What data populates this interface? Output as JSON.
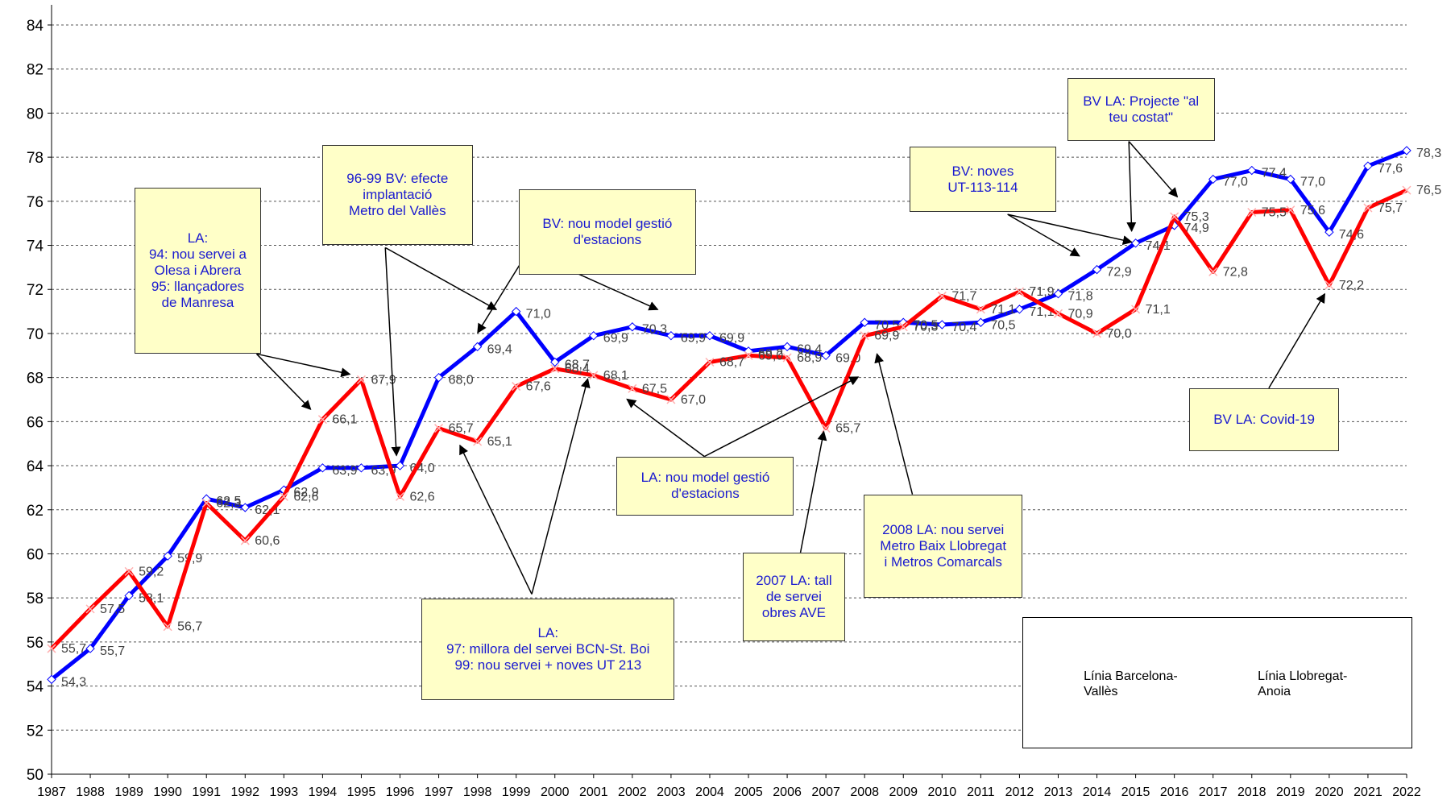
{
  "chart_data": {
    "type": "line",
    "categories": [
      "1987",
      "1988",
      "1989",
      "1990",
      "1991",
      "1992",
      "1993",
      "1994",
      "1995",
      "1996",
      "1997",
      "1998",
      "1999",
      "2000",
      "2001",
      "2002",
      "2003",
      "2004",
      "2005",
      "2006",
      "2007",
      "2008",
      "2009",
      "2010",
      "2011",
      "2012",
      "2013",
      "2014",
      "2015",
      "2016",
      "2017",
      "2018",
      "2019",
      "2020",
      "2021",
      "2022"
    ],
    "series": [
      {
        "name": "Línia Barcelona-Vallès",
        "color": "#0000ff",
        "values": [
          54.3,
          55.7,
          58.1,
          59.9,
          62.5,
          62.1,
          62.9,
          63.9,
          63.9,
          64.0,
          68.0,
          69.4,
          71.0,
          68.7,
          69.9,
          70.3,
          69.9,
          69.9,
          69.2,
          69.4,
          69.0,
          70.5,
          70.5,
          70.4,
          70.5,
          71.1,
          71.8,
          72.9,
          74.1,
          74.9,
          77.0,
          77.4,
          77.0,
          74.6,
          77.6,
          78.3
        ],
        "value_labels": [
          "54,3",
          "55,7",
          "58,1",
          "59,9",
          "62,5",
          "62,1",
          "62,9",
          "63,9",
          "63,9",
          "64,0",
          "68,0",
          "69,4",
          "71,0",
          "68,7",
          "69,9",
          "70,3",
          "69,9",
          "69,9",
          "69,2",
          "69,4",
          "69,0",
          "70,5",
          "70,5",
          "70,4",
          "70,5",
          "71,1",
          "71,8",
          "72,9",
          "74,1",
          "74,9",
          "77,0",
          "77,4",
          "77,0",
          "74,6",
          "77,6",
          "78,3"
        ]
      },
      {
        "name": "Línia Llobregat-Anoia",
        "color": "#ff0000",
        "values": [
          55.7,
          57.5,
          59.2,
          56.7,
          62.3,
          60.6,
          62.6,
          66.1,
          67.9,
          62.6,
          65.7,
          65.1,
          67.6,
          68.4,
          68.1,
          67.5,
          67.0,
          68.7,
          69.0,
          68.9,
          65.7,
          69.9,
          70.3,
          71.7,
          71.1,
          71.9,
          70.9,
          70.0,
          71.1,
          75.3,
          72.8,
          75.5,
          75.6,
          72.2,
          75.7,
          76.5
        ],
        "value_labels": [
          "55,7",
          "57,5",
          "59,2",
          "56,7",
          "62,3",
          "60,6",
          "62,6",
          "66,1",
          "67,9",
          "62,6",
          "65,7",
          "65,1",
          "67,6",
          "68,4",
          "68,1",
          "67,5",
          "67,0",
          "68,7",
          "69,0",
          "68,9",
          "65,7",
          "69,9",
          "70,3",
          "71,7",
          "71,1",
          "71,9",
          "70,9",
          "70,0",
          "71,1",
          "75,3",
          "72,8",
          "75,5",
          "75,6",
          "72,2",
          "75,7",
          "76,5"
        ]
      }
    ],
    "ylim": [
      50,
      84
    ],
    "yticks": [
      50,
      52,
      54,
      56,
      58,
      60,
      62,
      64,
      66,
      68,
      70,
      72,
      74,
      76,
      78,
      80,
      82,
      84
    ],
    "grid": true,
    "legend": "bottom-right",
    "annotations": [
      {
        "lines": [
          "LA:",
          "94: nou servei a",
          "Olesa i Abrera",
          "95: llançadores",
          "de Manresa"
        ]
      },
      {
        "lines": [
          "96-99 BV: efecte",
          "implantació",
          "Metro del Vallès"
        ]
      },
      {
        "lines": [
          "BV: nou model gestió",
          "d'estacions"
        ]
      },
      {
        "lines": [
          "LA:",
          "97: millora del servei BCN-St. Boi",
          "99: nou servei + noves UT 213"
        ]
      },
      {
        "lines": [
          "LA: nou model gestió",
          "d'estacions"
        ]
      },
      {
        "lines": [
          "2007 LA: tall",
          "de servei",
          "obres AVE"
        ]
      },
      {
        "lines": [
          "2008 LA:  nou servei",
          "Metro Baix Llobregat",
          "i Metros Comarcals"
        ]
      },
      {
        "lines": [
          "BV: noves",
          "UT-113-114"
        ]
      },
      {
        "lines": [
          "BV LA: Projecte \"al",
          "teu costat\""
        ]
      },
      {
        "lines": [
          "BV LA: Covid-19"
        ]
      }
    ]
  }
}
